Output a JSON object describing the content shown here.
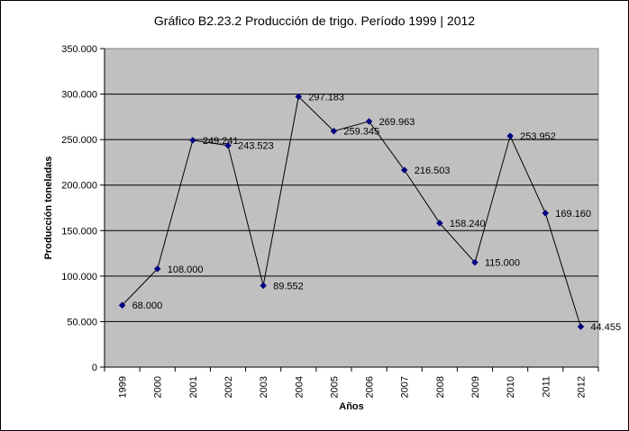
{
  "chart_data": {
    "type": "line",
    "title": "Gráfico B2.23.2 Producción de trigo. Período 1999 | 2012",
    "xlabel": "Años",
    "ylabel": "Producción toneladas",
    "categories": [
      "1999",
      "2000",
      "2001",
      "2002",
      "2003",
      "2004",
      "2005",
      "2006",
      "2007",
      "2008",
      "2009",
      "2010",
      "2011",
      "2012"
    ],
    "values": [
      68000,
      108000,
      249241,
      243523,
      89552,
      297183,
      259345,
      269963,
      216503,
      158240,
      115000,
      253952,
      169160,
      44455
    ],
    "data_labels": [
      "68.000",
      "108.000",
      "249.241",
      "243.523",
      "89.552",
      "297.183",
      "259.345",
      "269.963",
      "216.503",
      "158.240",
      "115.000",
      "253.952",
      "169.160",
      "44.455"
    ],
    "ylim": [
      0,
      350000
    ],
    "yticks": [
      0,
      50000,
      100000,
      150000,
      200000,
      250000,
      300000,
      350000
    ],
    "ytick_labels": [
      "0",
      "50.000",
      "100.000",
      "150.000",
      "200.000",
      "250.000",
      "300.000",
      "350.000"
    ],
    "grid": true,
    "legend": "none",
    "colors": {
      "plot_background": "#c0c0c0",
      "line": "#000000",
      "marker": "#000080"
    }
  }
}
